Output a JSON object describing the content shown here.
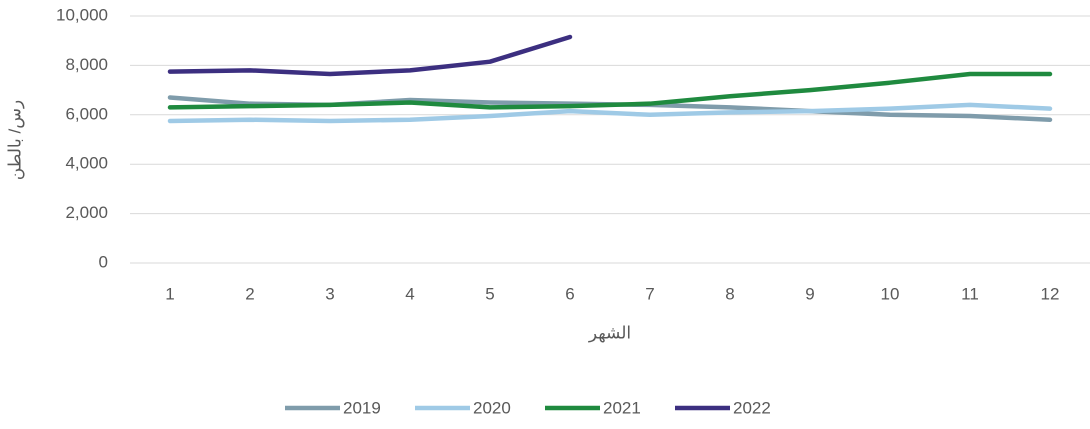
{
  "chart_data": {
    "type": "line",
    "categories": [
      "1",
      "2",
      "3",
      "4",
      "5",
      "6",
      "7",
      "8",
      "9",
      "10",
      "11",
      "12"
    ],
    "series": [
      {
        "name": "2019",
        "color": "#7f9cab",
        "values": [
          6700,
          6450,
          6400,
          6600,
          6500,
          6450,
          6400,
          6300,
          6150,
          6000,
          5950,
          5800
        ]
      },
      {
        "name": "2020",
        "color": "#9fcae6",
        "values": [
          5750,
          5800,
          5750,
          5800,
          5950,
          6150,
          6000,
          6100,
          6150,
          6250,
          6400,
          6250
        ]
      },
      {
        "name": "2021",
        "color": "#1f8a3f",
        "values": [
          6300,
          6350,
          6400,
          6500,
          6300,
          6350,
          6450,
          6750,
          7000,
          7300,
          7650,
          7650
        ]
      },
      {
        "name": "2022",
        "color": "#3c2f80",
        "values": [
          7750,
          7800,
          7650,
          7800,
          8150,
          9150,
          null,
          null,
          null,
          null,
          null,
          null
        ]
      }
    ],
    "ylim": [
      0,
      10000
    ],
    "yticks": [
      0,
      {
        "value": 2000,
        "label": "2,000"
      },
      {
        "value": 4000,
        "label": "4,000"
      },
      {
        "value": 6000,
        "label": "6,000"
      },
      {
        "value": 8000,
        "label": "8,000"
      },
      {
        "value": 10000,
        "label": "10,000"
      }
    ],
    "xlabel": "الشهر",
    "ylabel": "رس/ بالطن",
    "grid": true,
    "legend": "bottom"
  }
}
